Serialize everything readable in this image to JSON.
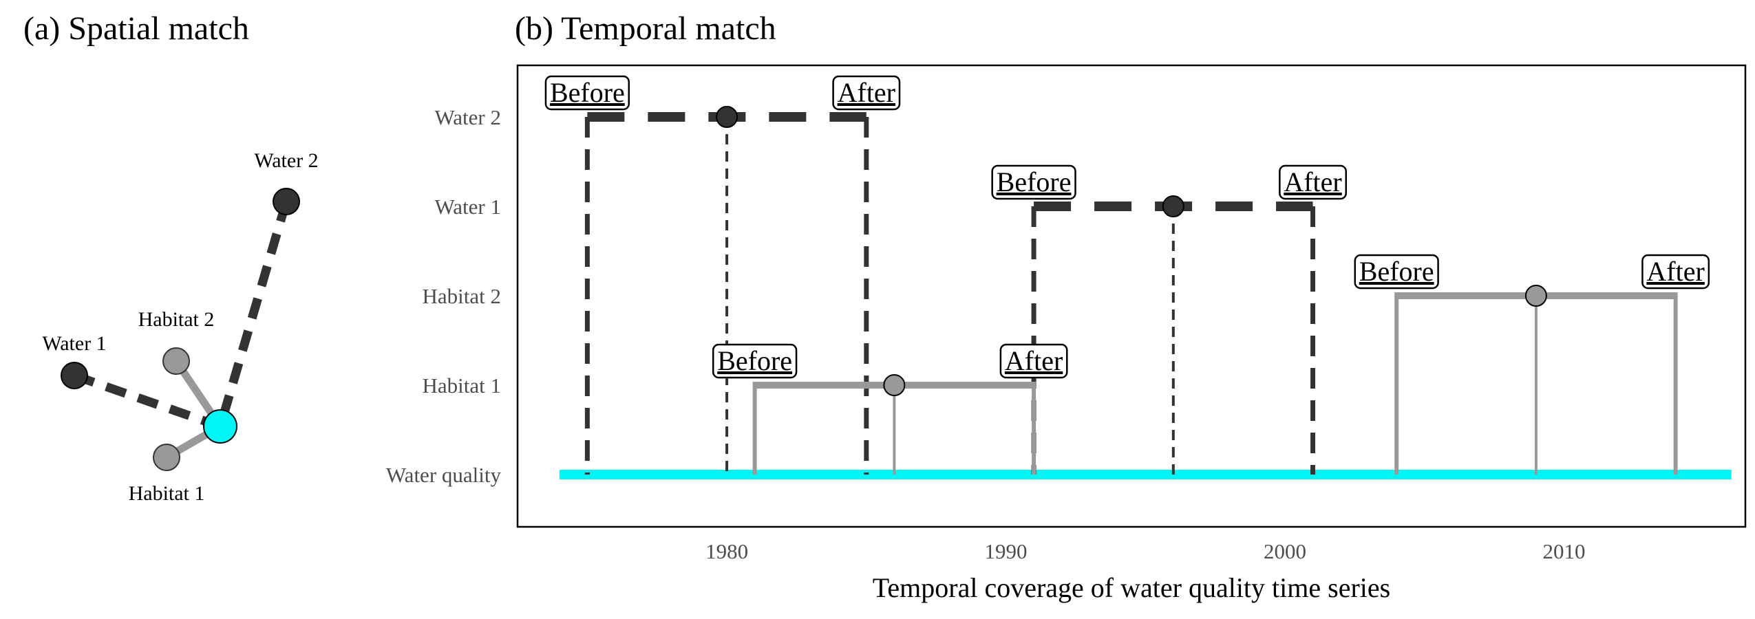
{
  "colors": {
    "water": "#333333",
    "habitat": "#999999",
    "water_quality": "#00f5f5",
    "frame": "#000000"
  },
  "panel_a": {
    "title": "(a) Spatial match",
    "nodes": [
      {
        "id": "water2",
        "label": "Water 2",
        "role": "water"
      },
      {
        "id": "water1",
        "label": "Water 1",
        "role": "water"
      },
      {
        "id": "habitat2",
        "label": "Habitat 2",
        "role": "habitat"
      },
      {
        "id": "habitat1",
        "label": "Habitat 1",
        "role": "habitat"
      },
      {
        "id": "wq",
        "label": "",
        "role": "water_quality"
      }
    ],
    "links": [
      {
        "from": "water2",
        "to": "wq",
        "style": "dashed",
        "role": "water"
      },
      {
        "from": "water1",
        "to": "wq",
        "style": "dashed",
        "role": "water"
      },
      {
        "from": "habitat2",
        "to": "wq",
        "style": "solid",
        "role": "habitat"
      },
      {
        "from": "habitat1",
        "to": "wq",
        "style": "solid",
        "role": "habitat"
      }
    ]
  },
  "chart_data": {
    "type": "timeline",
    "title": "(b) Temporal match",
    "xlabel": "Temporal coverage of water quality time series",
    "ylabel": "",
    "xlim": [
      1972.5,
      2016.5
    ],
    "x_ticks": [
      1980,
      1990,
      2000,
      2010
    ],
    "categories": [
      "Water quality",
      "Habitat 1",
      "Habitat 2",
      "Water 1",
      "Water 2"
    ],
    "water_quality_span": [
      1974,
      2016
    ],
    "before_label": "Before",
    "after_label": "After",
    "series": [
      {
        "name": "Water 2",
        "role": "water",
        "start": 1975,
        "event": 1980,
        "end": 1985
      },
      {
        "name": "Water 1",
        "role": "water",
        "start": 1991,
        "event": 1996,
        "end": 2001
      },
      {
        "name": "Habitat 2",
        "role": "habitat",
        "start": 2004,
        "event": 2009,
        "end": 2014
      },
      {
        "name": "Habitat 1",
        "role": "habitat",
        "start": 1981,
        "event": 1986,
        "end": 1991
      }
    ]
  }
}
